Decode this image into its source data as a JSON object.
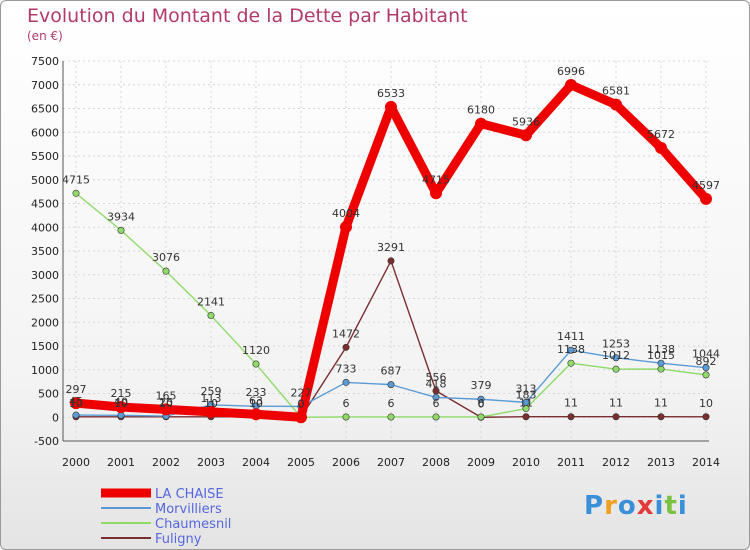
{
  "chart_data": {
    "type": "line",
    "title": "Evolution du Montant de la Dette par Habitant",
    "ylabel": "(en €)",
    "x": [
      2000,
      2001,
      2002,
      2003,
      2004,
      2005,
      2006,
      2007,
      2008,
      2009,
      2010,
      2011,
      2012,
      2013,
      2014
    ],
    "ylim": [
      -500,
      7500
    ],
    "yticks": [
      -500,
      0,
      500,
      1000,
      1500,
      2000,
      2500,
      3000,
      3500,
      4000,
      4500,
      5000,
      5500,
      6000,
      6500,
      7000,
      7500
    ],
    "grid": true,
    "series": [
      {
        "name": "LA CHAISE",
        "color": "#ee0000",
        "values": [
          297,
          215,
          165,
          113,
          63,
          0,
          4004,
          6533,
          4715,
          6180,
          5936,
          6996,
          6581,
          5672,
          4597
        ]
      },
      {
        "name": "Morvilliers",
        "color": "#5b9bd5",
        "values": [
          45,
          40,
          25,
          259,
          233,
          227,
          733,
          687,
          418,
          379,
          313,
          1411,
          1253,
          1138,
          1044
        ]
      },
      {
        "name": "Chaumesnil",
        "color": "#8fdb6a",
        "values": [
          4715,
          3934,
          3076,
          2141,
          1120,
          0,
          6,
          6,
          6,
          6,
          183,
          1138,
          1012,
          1015,
          892
        ]
      },
      {
        "name": "Fuligny",
        "color": "#7a2e2e",
        "values": [
          10,
          10,
          10,
          10,
          10,
          0,
          1472,
          3291,
          556,
          0,
          11,
          11,
          11,
          11,
          10
        ]
      }
    ],
    "legend_position": "bottom-left"
  },
  "branding": {
    "logo_text": "Proxiti"
  }
}
